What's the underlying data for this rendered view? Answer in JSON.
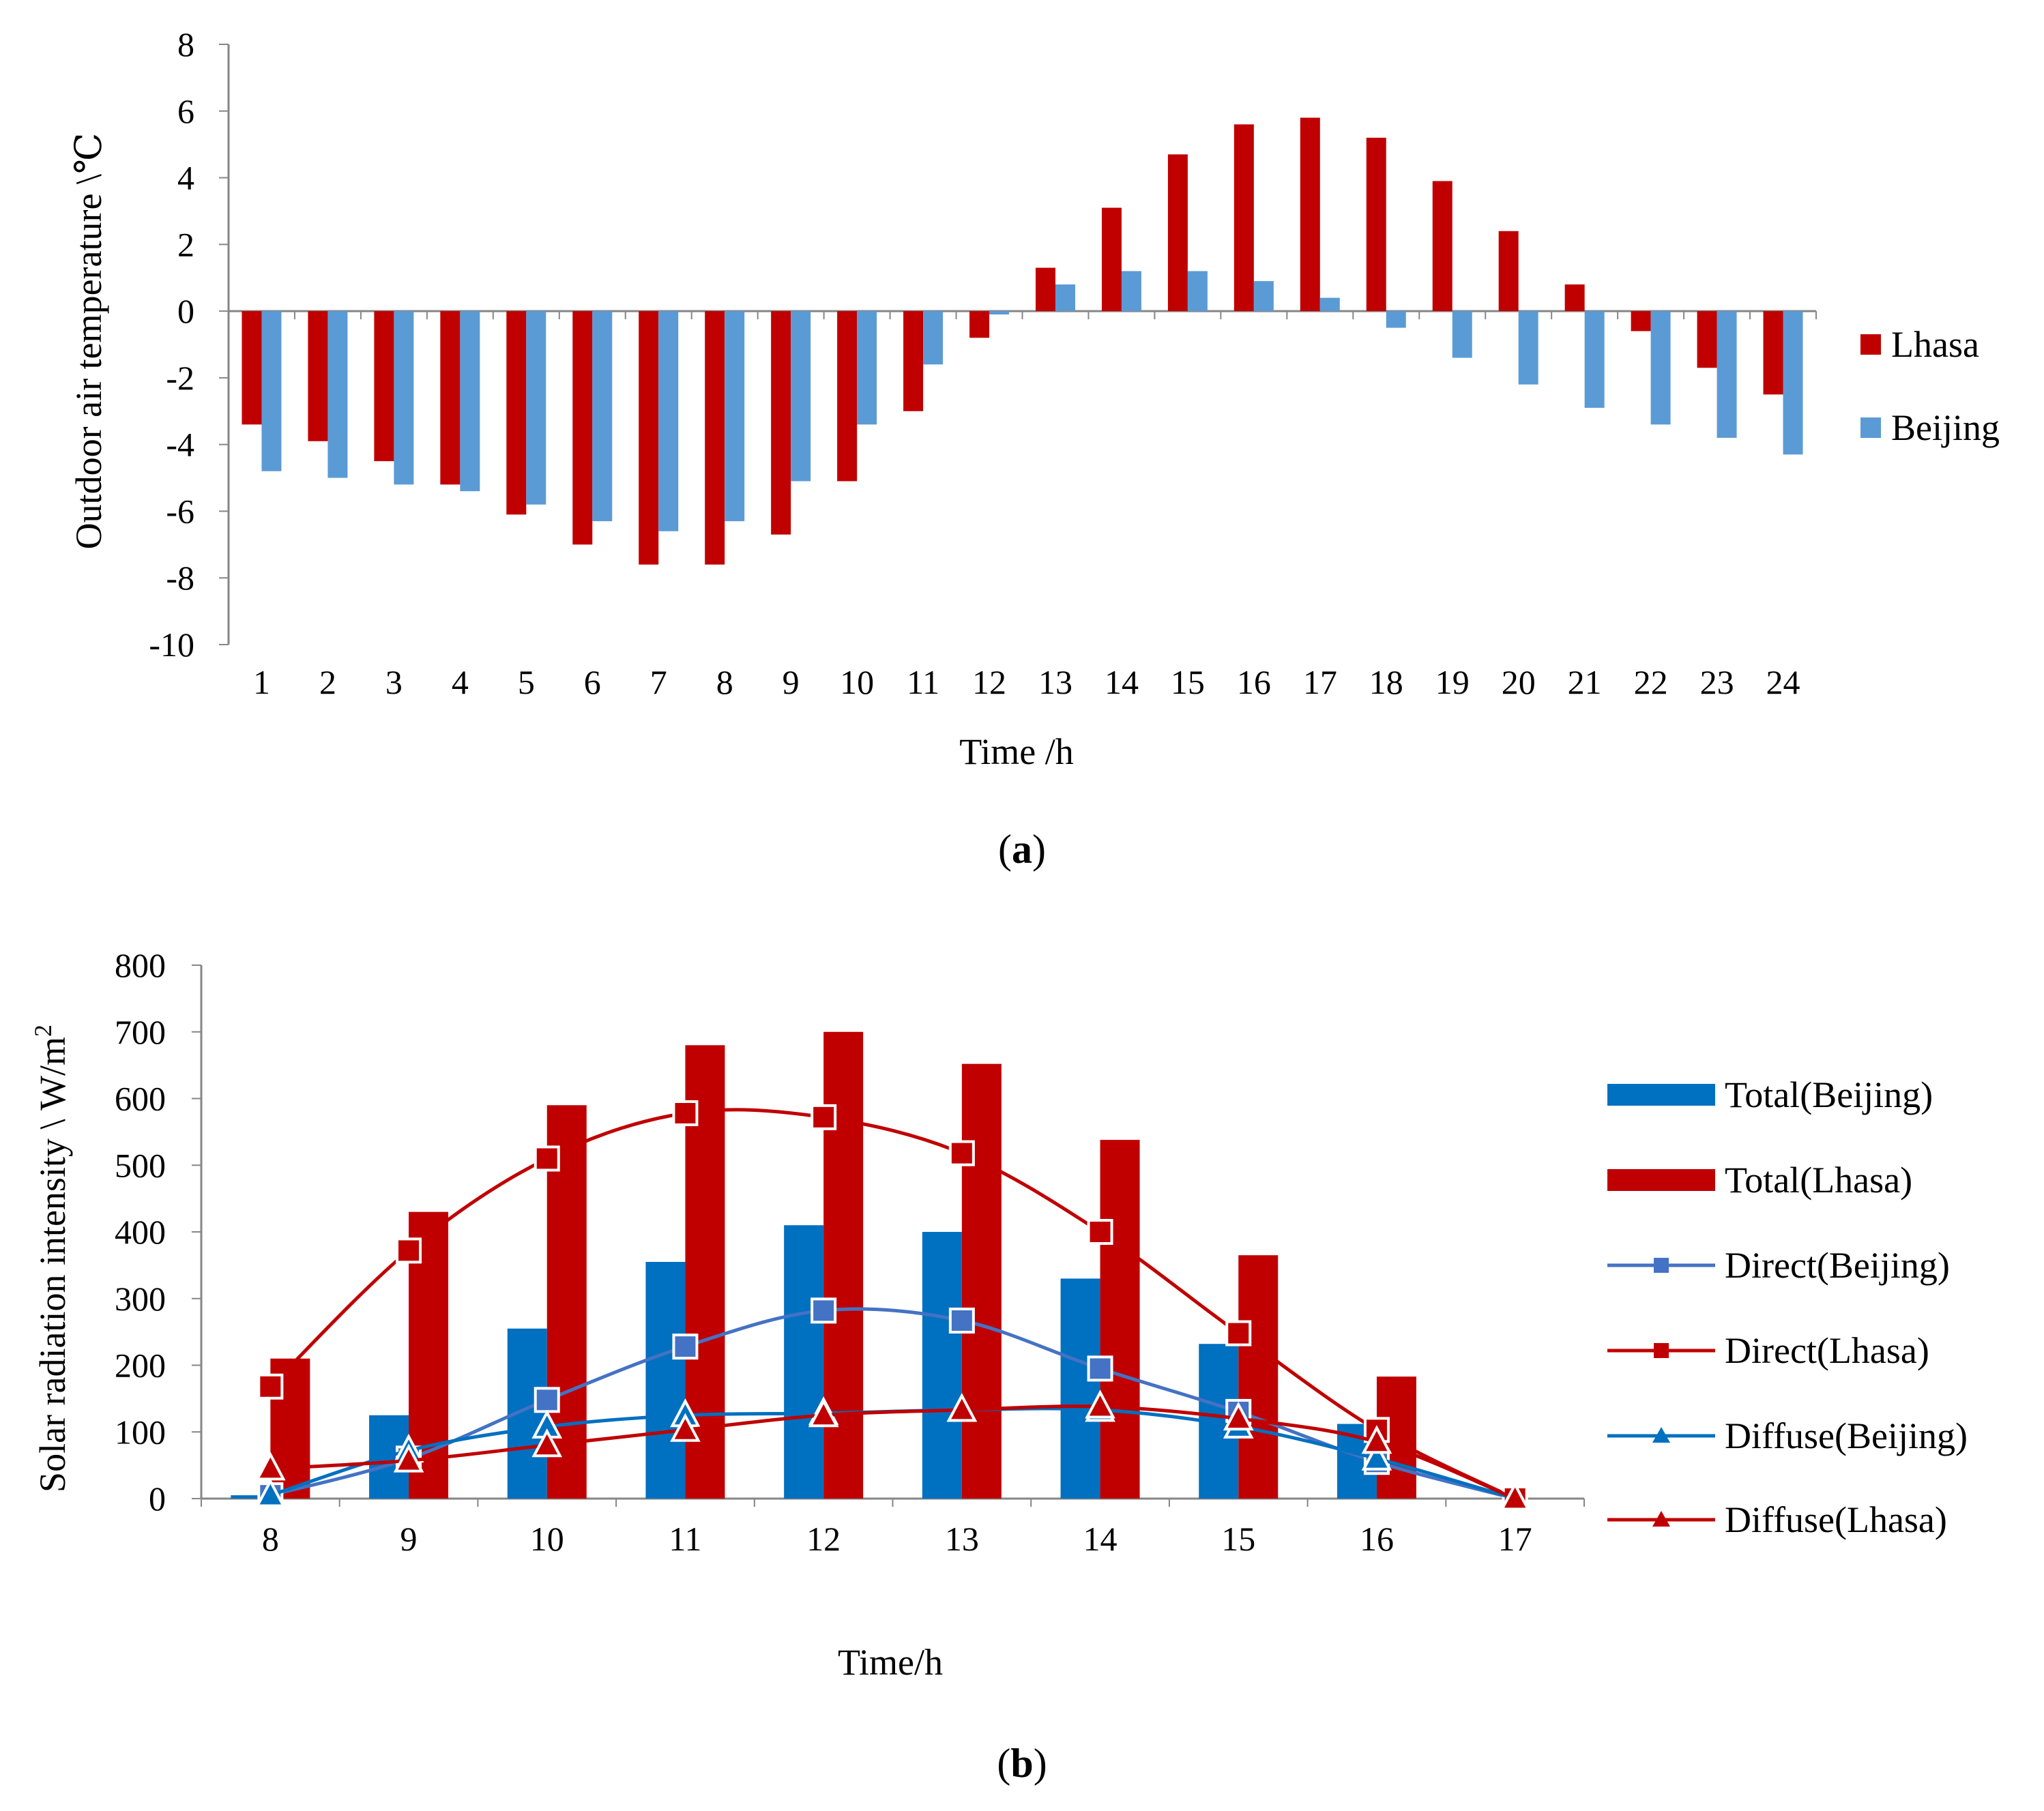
{
  "chart_data": [
    {
      "type": "bar",
      "caption_letter": "a",
      "xlabel": "Time /h",
      "ylabel": "Outdoor air temperature \\℃",
      "ylim": [
        -10,
        8
      ],
      "yticks": [
        8,
        6,
        4,
        2,
        0,
        -2,
        -4,
        -6,
        -8,
        -10
      ],
      "categories": [
        "1",
        "2",
        "3",
        "4",
        "5",
        "6",
        "7",
        "8",
        "9",
        "10",
        "11",
        "12",
        "13",
        "14",
        "15",
        "16",
        "17",
        "18",
        "19",
        "20",
        "21",
        "22",
        "23",
        "24"
      ],
      "series": [
        {
          "name": "Lhasa",
          "color": "#C00000",
          "values": [
            -3.4,
            -3.9,
            -4.5,
            -5.2,
            -6.1,
            -7.0,
            -7.6,
            -7.6,
            -6.7,
            -5.1,
            -3.0,
            -0.8,
            1.3,
            3.1,
            4.7,
            5.6,
            5.8,
            5.2,
            3.9,
            2.4,
            0.8,
            -0.6,
            -1.7,
            -2.5
          ]
        },
        {
          "name": "Beijing",
          "color": "#5B9BD5",
          "values": [
            -4.8,
            -5.0,
            -5.2,
            -5.4,
            -5.8,
            -6.3,
            -6.6,
            -6.3,
            -5.1,
            -3.4,
            -1.6,
            -0.1,
            0.8,
            1.2,
            1.2,
            0.9,
            0.4,
            -0.5,
            -1.4,
            -2.2,
            -2.9,
            -3.4,
            -3.8,
            -4.3
          ]
        }
      ],
      "legend_position": "right"
    },
    {
      "type": "bar+line",
      "caption_letter": "b",
      "xlabel": "Time/h",
      "ylabel": "Solar radiation intensity \\ W/m",
      "ylabel_sup": "2",
      "ylim": [
        0,
        800
      ],
      "yticks": [
        800,
        700,
        600,
        500,
        400,
        300,
        200,
        100,
        0
      ],
      "categories": [
        "8",
        "9",
        "10",
        "11",
        "12",
        "13",
        "14",
        "15",
        "16",
        "17"
      ],
      "bars": [
        {
          "name": "Total(Beijing)",
          "color": "#0070C0",
          "values": [
            5,
            125,
            255,
            355,
            410,
            400,
            330,
            232,
            112,
            0
          ]
        },
        {
          "name": "Total(Lhasa)",
          "color": "#C00000",
          "values": [
            210,
            430,
            590,
            680,
            700,
            652,
            538,
            365,
            183,
            0
          ]
        }
      ],
      "lines": [
        {
          "name": "Direct(Beijing)",
          "color": "#4472C4",
          "marker": "square",
          "values": [
            5,
            60,
            148,
            228,
            282,
            267,
            195,
            130,
            55,
            0
          ]
        },
        {
          "name": "Direct(Lhasa)",
          "color": "#C00000",
          "marker": "square",
          "values": [
            168,
            372,
            510,
            578,
            572,
            518,
            400,
            248,
            103,
            0
          ]
        },
        {
          "name": "Diffuse(Beijing)",
          "color": "#0070C0",
          "marker": "triangle",
          "values": [
            5,
            72,
            108,
            125,
            128,
            133,
            133,
            108,
            60,
            0
          ]
        },
        {
          "name": "Diffuse(Lhasa)",
          "color": "#C00000",
          "marker": "triangle",
          "values": [
            45,
            57,
            80,
            103,
            125,
            133,
            138,
            120,
            85,
            0
          ]
        }
      ],
      "legend_position": "right"
    }
  ]
}
